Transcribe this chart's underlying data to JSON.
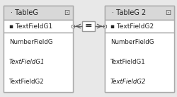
{
  "bg_color": "#e8e8e8",
  "box_fill": "#f0f0f0",
  "box_edge": "#aaaaaa",
  "header_fill": "#d8d8d8",
  "header_edge": "#aaaaaa",
  "join_box_fill": "#ffffff",
  "join_box_edge": "#999999",
  "table1": {
    "title": "TableG",
    "key_field": "TextFieldG1",
    "fields": [
      "NumberFieldG",
      "TextFieldG1",
      "TextFieldG2"
    ],
    "fields_italic": [
      false,
      true,
      false
    ]
  },
  "table2": {
    "title": "TableG 2",
    "key_field": "TextFieldG2",
    "fields": [
      "NumberFieldG",
      "TextFieldG1",
      "TextFieldG2"
    ],
    "fields_italic": [
      false,
      false,
      true
    ]
  },
  "fig_width": 2.5,
  "fig_height": 1.37,
  "dpi": 100
}
